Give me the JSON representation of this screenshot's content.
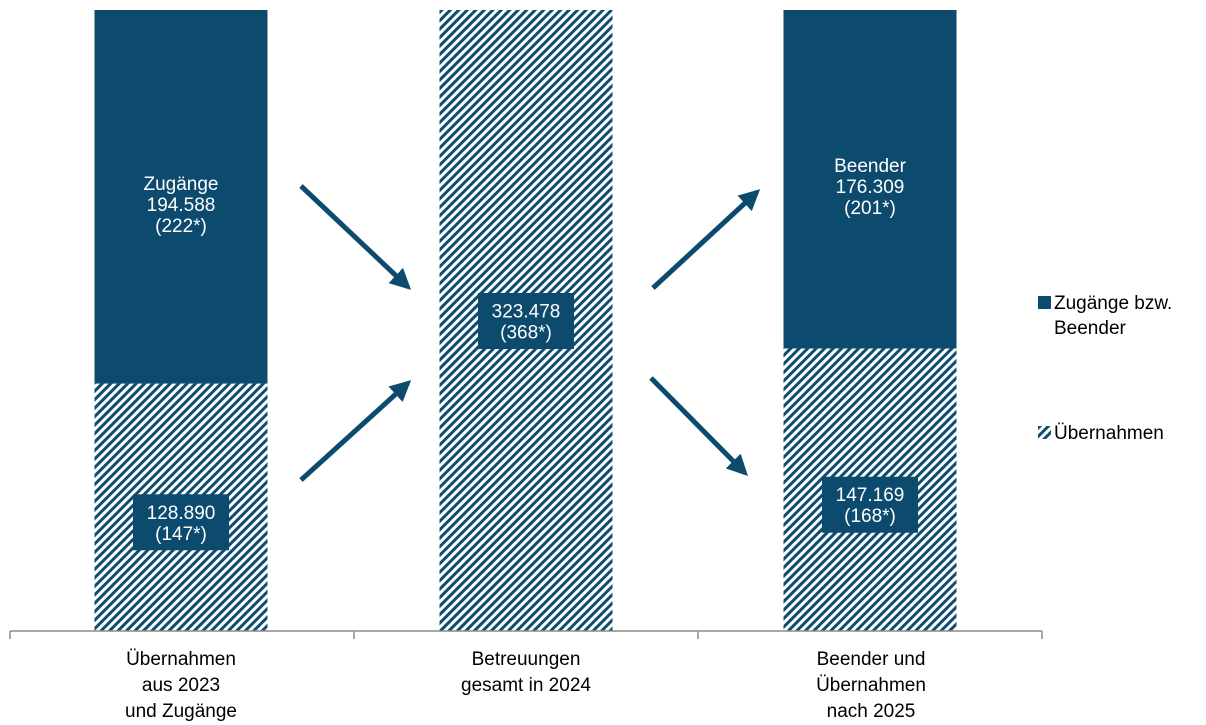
{
  "colors": {
    "solid": "#0c4a6e",
    "hatch_dark": "#0f4d70",
    "hatch_light": "#ffffff",
    "arrow": "#0c4a6e",
    "axis": "#8c8c8c"
  },
  "chart_data": {
    "type": "bar",
    "stacked": true,
    "categories": [
      "Übernahmen aus 2023 und Zugänge",
      "Betreuungen gesamt in 2024",
      "Beender und Übernahmen nach 2025"
    ],
    "category_lines": [
      [
        "Übernahmen",
        "aus 2023",
        "und Zugänge"
      ],
      [
        "Betreuungen",
        "gesamt in 2024"
      ],
      [
        "Beender und",
        "Übernahmen",
        "nach 2025"
      ]
    ],
    "series": [
      {
        "name": "Übernahmen",
        "pattern": "hatch",
        "values": [
          128890,
          323478,
          147169
        ]
      },
      {
        "name": "Zugänge bzw. Beender",
        "pattern": "solid",
        "values": [
          194588,
          0,
          176309
        ]
      }
    ],
    "labels": [
      {
        "bar": 0,
        "series": 1,
        "lines": [
          "Zugänge",
          "194.588",
          "(222*)"
        ]
      },
      {
        "bar": 0,
        "series": 0,
        "lines": [
          "128.890",
          "(147*)"
        ]
      },
      {
        "bar": 1,
        "series": 0,
        "lines": [
          "323.478",
          "(368*)"
        ]
      },
      {
        "bar": 2,
        "series": 1,
        "lines": [
          "Beender",
          "176.309",
          "(201*)"
        ]
      },
      {
        "bar": 2,
        "series": 0,
        "lines": [
          "147.169",
          "(168*)"
        ]
      }
    ],
    "legend": {
      "position": "right",
      "entries": [
        {
          "lines": [
            "Zugänge bzw.",
            "Beender"
          ],
          "pattern": "solid"
        },
        {
          "lines": [
            "Übernahmen"
          ],
          "pattern": "hatch"
        }
      ]
    },
    "ylim": [
      0,
      323478
    ],
    "arrows": [
      "bar0-top-to-bar1",
      "bar0-bottom-to-bar1",
      "bar1-to-bar2-top",
      "bar1-to-bar2-bottom"
    ],
    "grid": false
  }
}
